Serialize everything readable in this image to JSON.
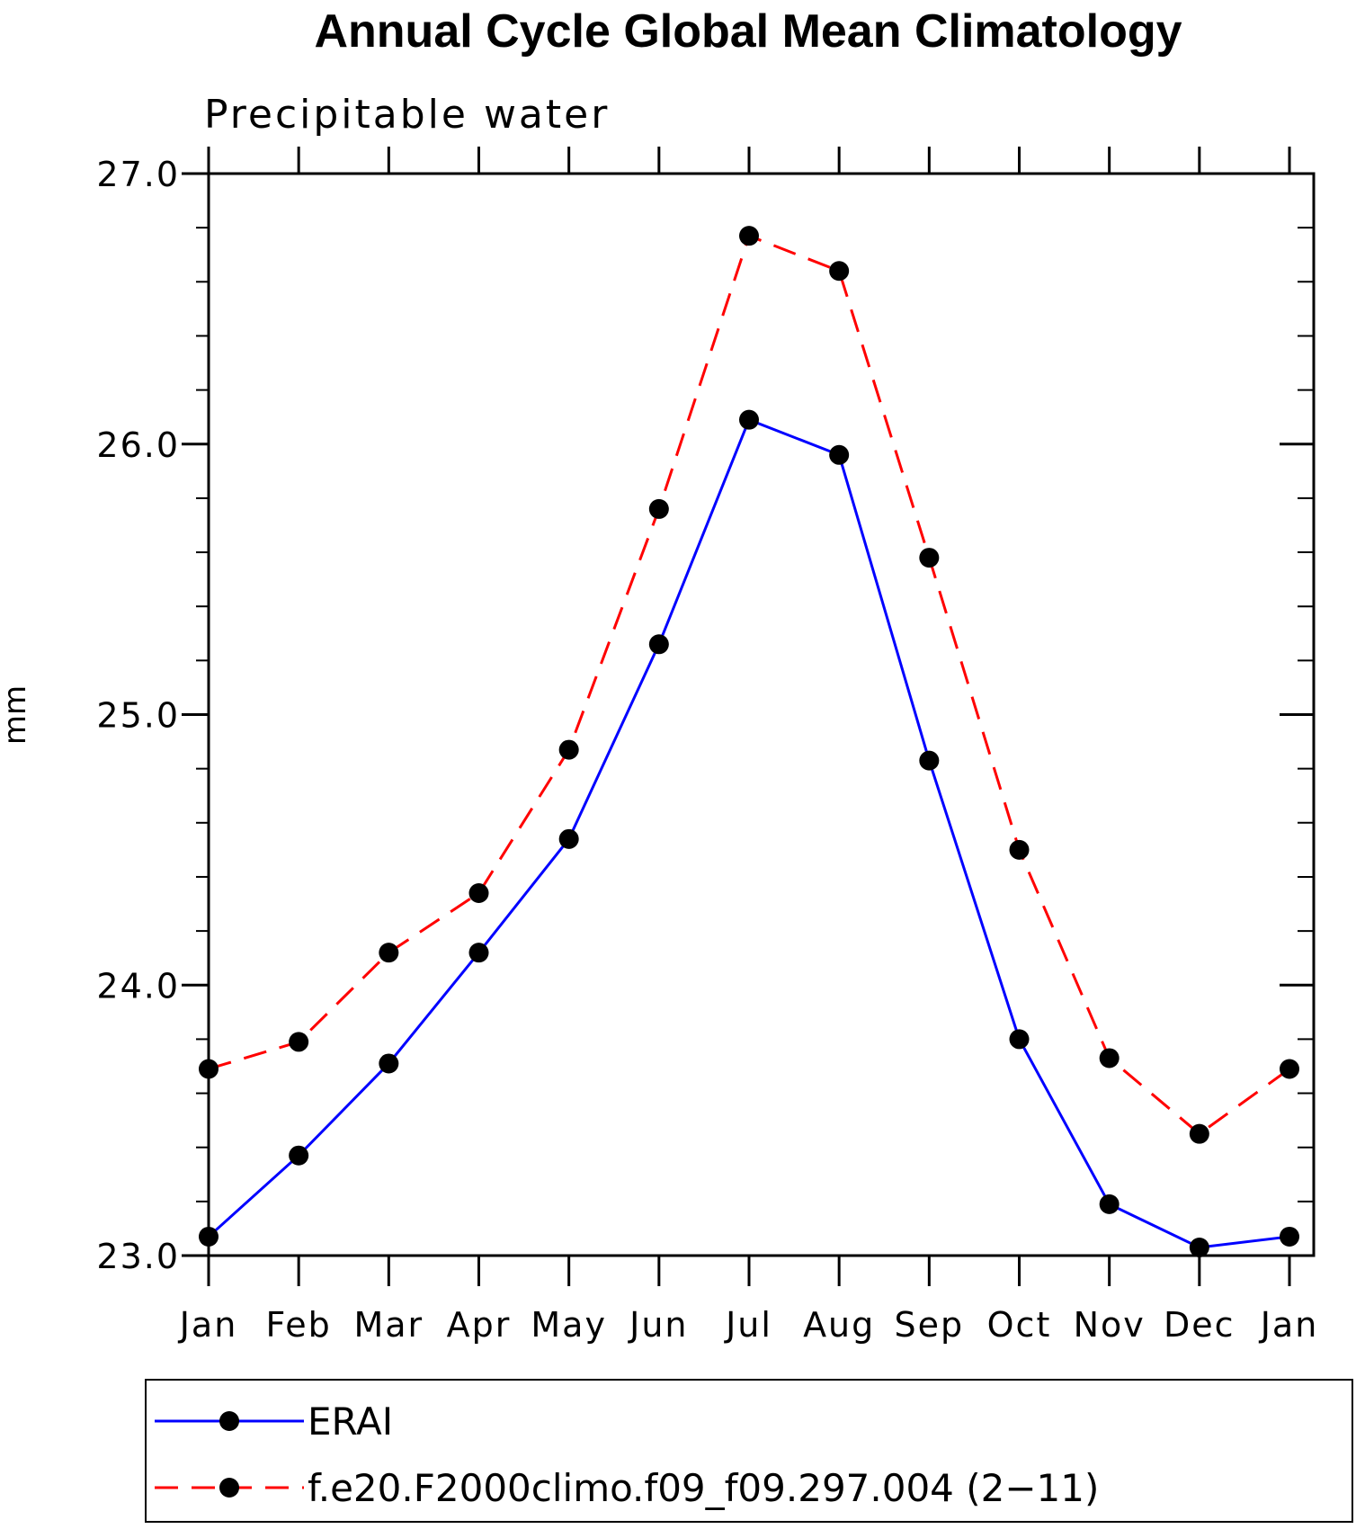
{
  "chart_data": {
    "type": "line",
    "title": "Annual Cycle Global Mean Climatology",
    "subtitle": "Precipitable water",
    "xlabel": "",
    "ylabel": "mm",
    "categories": [
      "Jan",
      "Feb",
      "Mar",
      "Apr",
      "May",
      "Jun",
      "Jul",
      "Aug",
      "Sep",
      "Oct",
      "Nov",
      "Dec",
      "Jan"
    ],
    "ylim": [
      23.0,
      27.0
    ],
    "yticks": [
      "23.0",
      "24.0",
      "25.0",
      "26.0",
      "27.0"
    ],
    "grid": false,
    "legend_position": "bottom",
    "series": [
      {
        "name": "ERAI",
        "color": "#0000ff",
        "line_style": "solid",
        "marker": "filled-circle",
        "values": [
          23.07,
          23.37,
          23.71,
          24.12,
          24.54,
          25.26,
          26.09,
          25.96,
          24.83,
          23.8,
          23.19,
          23.03,
          23.07
        ]
      },
      {
        "name": "f.e20.F2000climo.f09_f09.297.004 (2−11)",
        "color": "#ff0000",
        "line_style": "dashed",
        "marker": "filled-circle",
        "values": [
          23.69,
          23.79,
          24.12,
          24.34,
          24.87,
          25.76,
          26.77,
          26.64,
          25.58,
          24.5,
          23.73,
          23.45,
          23.69
        ]
      }
    ]
  }
}
